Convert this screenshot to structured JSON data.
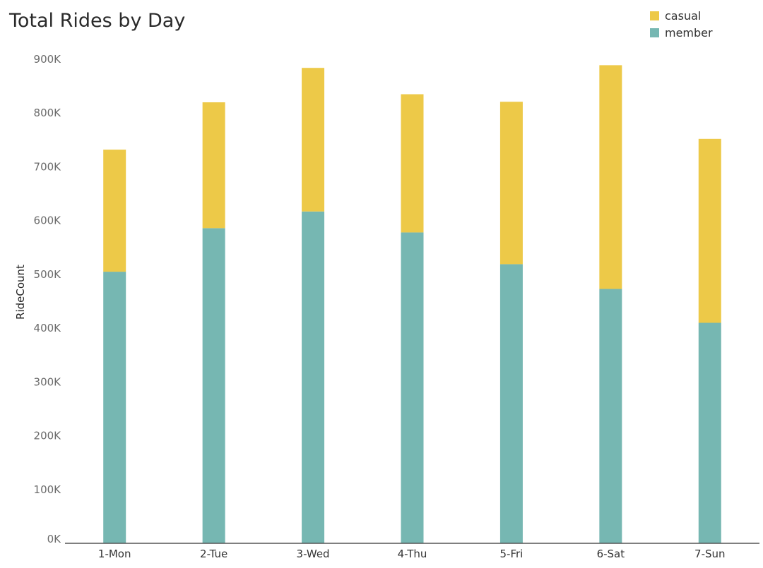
{
  "chart_data": {
    "type": "bar",
    "stacked": true,
    "title": "Total Rides by Day",
    "xlabel": "",
    "ylabel": "RideCount",
    "categories": [
      "1-Mon",
      "2-Tue",
      "3-Wed",
      "4-Thu",
      "5-Fri",
      "6-Sat",
      "7-Sun"
    ],
    "series": [
      {
        "name": "member",
        "color": "#76b7b2",
        "values": [
          505000,
          586000,
          617000,
          578000,
          519000,
          473000,
          410000
        ]
      },
      {
        "name": "casual",
        "color": "#edc948",
        "values": [
          227000,
          234000,
          267000,
          257000,
          302000,
          416000,
          342000
        ]
      }
    ],
    "ylim": [
      0,
      900000
    ],
    "yticks": [
      0,
      100000,
      200000,
      300000,
      400000,
      500000,
      600000,
      700000,
      800000,
      900000
    ],
    "ytick_labels": [
      "0K",
      "100K",
      "200K",
      "300K",
      "400K",
      "500K",
      "600K",
      "700K",
      "800K",
      "900K"
    ],
    "legend_position": "top-right",
    "grid": false
  }
}
